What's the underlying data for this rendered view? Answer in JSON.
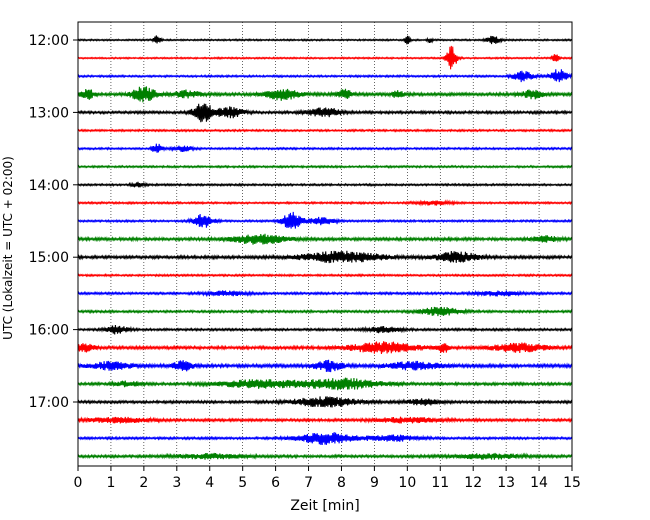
{
  "chart_data": {
    "type": "line",
    "title": "",
    "xlabel": "Zeit  [min]",
    "ylabel": "UTC (Lokalzeit = UTC + 02:00)",
    "xlim": [
      0,
      15
    ],
    "xticks": [
      0,
      1,
      2,
      3,
      4,
      5,
      6,
      7,
      8,
      9,
      10,
      11,
      12,
      13,
      14,
      15
    ],
    "yticks": [
      {
        "label": "12:00",
        "row": 0
      },
      {
        "label": "13:00",
        "row": 4
      },
      {
        "label": "14:00",
        "row": 8
      },
      {
        "label": "15:00",
        "row": 12
      },
      {
        "label": "16:00",
        "row": 16
      },
      {
        "label": "17:00",
        "row": 20
      }
    ],
    "grid": "vertical dotted at each minute",
    "colors": [
      "#000000",
      "#ff0000",
      "#0000ff",
      "#008000"
    ],
    "rows_per_hour": 4,
    "minutes_per_row": 15,
    "traces": [
      {
        "start": "12:00",
        "color": "#000000",
        "noise": 0.25,
        "bursts": [
          {
            "t": 2.4,
            "amp": 1.6,
            "w": 0.1
          },
          {
            "t": 10.0,
            "amp": 1.6,
            "w": 0.08
          },
          {
            "t": 10.7,
            "amp": 1.0,
            "w": 0.08
          },
          {
            "t": 12.6,
            "amp": 1.3,
            "w": 0.2
          }
        ]
      },
      {
        "start": "12:15",
        "color": "#ff0000",
        "noise": 0.25,
        "bursts": [
          {
            "t": 11.35,
            "amp": 4.5,
            "w": 0.15
          },
          {
            "t": 14.5,
            "amp": 1.4,
            "w": 0.1
          }
        ]
      },
      {
        "start": "12:30",
        "color": "#0000ff",
        "noise": 0.3,
        "bursts": [
          {
            "t": 13.5,
            "amp": 1.8,
            "w": 0.3
          },
          {
            "t": 14.6,
            "amp": 2.4,
            "w": 0.25
          }
        ]
      },
      {
        "start": "12:45",
        "color": "#008000",
        "noise": 0.45,
        "bursts": [
          {
            "t": 0.3,
            "amp": 1.6,
            "w": 0.2
          },
          {
            "t": 2.0,
            "amp": 2.6,
            "w": 0.35
          },
          {
            "t": 3.3,
            "amp": 1.2,
            "w": 0.4
          },
          {
            "t": 6.2,
            "amp": 1.8,
            "w": 0.5
          },
          {
            "t": 8.1,
            "amp": 1.5,
            "w": 0.25
          },
          {
            "t": 9.7,
            "amp": 1.0,
            "w": 0.2
          },
          {
            "t": 13.8,
            "amp": 1.4,
            "w": 0.3
          }
        ]
      },
      {
        "start": "13:00",
        "color": "#000000",
        "noise": 0.4,
        "bursts": [
          {
            "t": 3.8,
            "amp": 3.2,
            "w": 0.3
          },
          {
            "t": 4.6,
            "amp": 1.8,
            "w": 0.4
          },
          {
            "t": 7.5,
            "amp": 1.5,
            "w": 0.5
          }
        ]
      },
      {
        "start": "13:15",
        "color": "#ff0000",
        "noise": 0.3,
        "bursts": []
      },
      {
        "start": "13:30",
        "color": "#0000ff",
        "noise": 0.3,
        "bursts": [
          {
            "t": 2.4,
            "amp": 1.8,
            "w": 0.15
          },
          {
            "t": 3.2,
            "amp": 0.9,
            "w": 0.3
          }
        ]
      },
      {
        "start": "13:45",
        "color": "#008000",
        "noise": 0.3,
        "bursts": []
      },
      {
        "start": "14:00",
        "color": "#000000",
        "noise": 0.3,
        "bursts": [
          {
            "t": 1.8,
            "amp": 0.8,
            "w": 0.2
          }
        ]
      },
      {
        "start": "14:15",
        "color": "#ff0000",
        "noise": 0.3,
        "bursts": [
          {
            "t": 10.8,
            "amp": 0.7,
            "w": 0.5
          }
        ]
      },
      {
        "start": "14:30",
        "color": "#0000ff",
        "noise": 0.3,
        "bursts": [
          {
            "t": 3.8,
            "amp": 2.4,
            "w": 0.3
          },
          {
            "t": 6.5,
            "amp": 3.0,
            "w": 0.3
          },
          {
            "t": 7.4,
            "amp": 1.2,
            "w": 0.4
          }
        ]
      },
      {
        "start": "14:45",
        "color": "#008000",
        "noise": 0.45,
        "bursts": [
          {
            "t": 5.5,
            "amp": 1.6,
            "w": 0.8
          },
          {
            "t": 14.2,
            "amp": 0.9,
            "w": 0.4
          }
        ]
      },
      {
        "start": "15:00",
        "color": "#000000",
        "noise": 0.45,
        "bursts": [
          {
            "t": 8.0,
            "amp": 1.8,
            "w": 1.2
          },
          {
            "t": 11.5,
            "amp": 1.8,
            "w": 0.6
          }
        ]
      },
      {
        "start": "15:15",
        "color": "#ff0000",
        "noise": 0.3,
        "bursts": []
      },
      {
        "start": "15:30",
        "color": "#0000ff",
        "noise": 0.35,
        "bursts": [
          {
            "t": 4.5,
            "amp": 0.8,
            "w": 0.6
          },
          {
            "t": 12.8,
            "amp": 0.8,
            "w": 0.6
          }
        ]
      },
      {
        "start": "15:45",
        "color": "#008000",
        "noise": 0.35,
        "bursts": [
          {
            "t": 11.0,
            "amp": 1.4,
            "w": 0.6
          }
        ]
      },
      {
        "start": "16:00",
        "color": "#000000",
        "noise": 0.35,
        "bursts": [
          {
            "t": 1.2,
            "amp": 1.5,
            "w": 0.3
          },
          {
            "t": 9.3,
            "amp": 1.0,
            "w": 0.5
          }
        ]
      },
      {
        "start": "16:15",
        "color": "#ff0000",
        "noise": 0.45,
        "bursts": [
          {
            "t": 0.2,
            "amp": 1.4,
            "w": 0.3
          },
          {
            "t": 9.3,
            "amp": 1.8,
            "w": 1.0
          },
          {
            "t": 11.1,
            "amp": 1.8,
            "w": 0.15
          },
          {
            "t": 13.4,
            "amp": 1.4,
            "w": 0.8
          }
        ]
      },
      {
        "start": "16:30",
        "color": "#0000ff",
        "noise": 0.5,
        "bursts": [
          {
            "t": 1.0,
            "amp": 1.3,
            "w": 0.6
          },
          {
            "t": 3.2,
            "amp": 1.6,
            "w": 0.3
          },
          {
            "t": 7.6,
            "amp": 1.8,
            "w": 0.4
          },
          {
            "t": 10.2,
            "amp": 1.2,
            "w": 0.8
          }
        ]
      },
      {
        "start": "16:45",
        "color": "#008000",
        "noise": 0.4,
        "bursts": [
          {
            "t": 1.5,
            "amp": 0.8,
            "w": 0.4
          },
          {
            "t": 5.5,
            "amp": 1.3,
            "w": 1.2
          },
          {
            "t": 8.0,
            "amp": 1.8,
            "w": 1.2
          }
        ]
      },
      {
        "start": "17:00",
        "color": "#000000",
        "noise": 0.4,
        "bursts": [
          {
            "t": 7.5,
            "amp": 1.6,
            "w": 1.0
          },
          {
            "t": 10.5,
            "amp": 1.0,
            "w": 0.5
          }
        ]
      },
      {
        "start": "17:15",
        "color": "#ff0000",
        "noise": 0.4,
        "bursts": [
          {
            "t": 1.2,
            "amp": 0.8,
            "w": 1.0
          },
          {
            "t": 10.0,
            "amp": 0.8,
            "w": 1.0
          }
        ]
      },
      {
        "start": "17:30",
        "color": "#0000ff",
        "noise": 0.35,
        "bursts": [
          {
            "t": 7.5,
            "amp": 2.0,
            "w": 0.8
          },
          {
            "t": 9.5,
            "amp": 1.0,
            "w": 0.8
          }
        ]
      },
      {
        "start": "17:45",
        "color": "#008000",
        "noise": 0.4,
        "bursts": [
          {
            "t": 4.0,
            "amp": 0.8,
            "w": 1.0
          },
          {
            "t": 12.5,
            "amp": 0.8,
            "w": 1.0
          }
        ]
      }
    ]
  }
}
